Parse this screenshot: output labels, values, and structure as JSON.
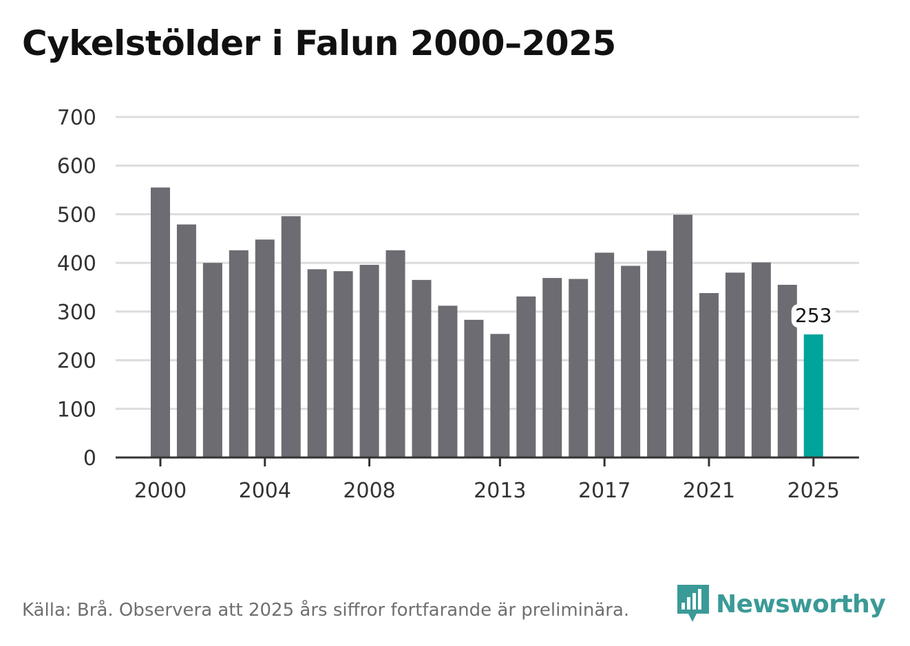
{
  "chart_data": {
    "type": "bar",
    "title": "Cykelstölder i Falun 2000–2025",
    "xlabel": "",
    "ylabel": "",
    "ylim": [
      0,
      700
    ],
    "y_ticks": [
      0,
      100,
      200,
      300,
      400,
      500,
      600,
      700
    ],
    "x_tick_labels": [
      "2000",
      "2004",
      "2008",
      "2013",
      "2017",
      "2021",
      "2025"
    ],
    "grid": true,
    "categories": [
      "2000",
      "2001",
      "2002",
      "2003",
      "2004",
      "2005",
      "2006",
      "2007",
      "2008",
      "2009",
      "2010",
      "2011",
      "2012",
      "2013",
      "2014",
      "2015",
      "2016",
      "2017",
      "2018",
      "2019",
      "2020",
      "2021",
      "2022",
      "2023",
      "2024",
      "2025"
    ],
    "values": [
      555,
      479,
      400,
      426,
      448,
      496,
      387,
      383,
      396,
      426,
      365,
      312,
      283,
      254,
      331,
      369,
      367,
      421,
      394,
      425,
      499,
      338,
      380,
      401,
      355,
      253
    ],
    "highlight": {
      "category": "2025",
      "label": "253"
    },
    "colors": {
      "bar": "#6d6c72",
      "highlight": "#00a49a",
      "grid": "#dcdcdc",
      "axis": "#333333"
    }
  },
  "footer": {
    "source": "Källa: Brå. Observera att 2025 års siffror fortfarande är preliminära.",
    "brand": "Newsworthy",
    "brand_icon": "newsworthy-logo-icon",
    "brand_color": "#3a9a97"
  }
}
